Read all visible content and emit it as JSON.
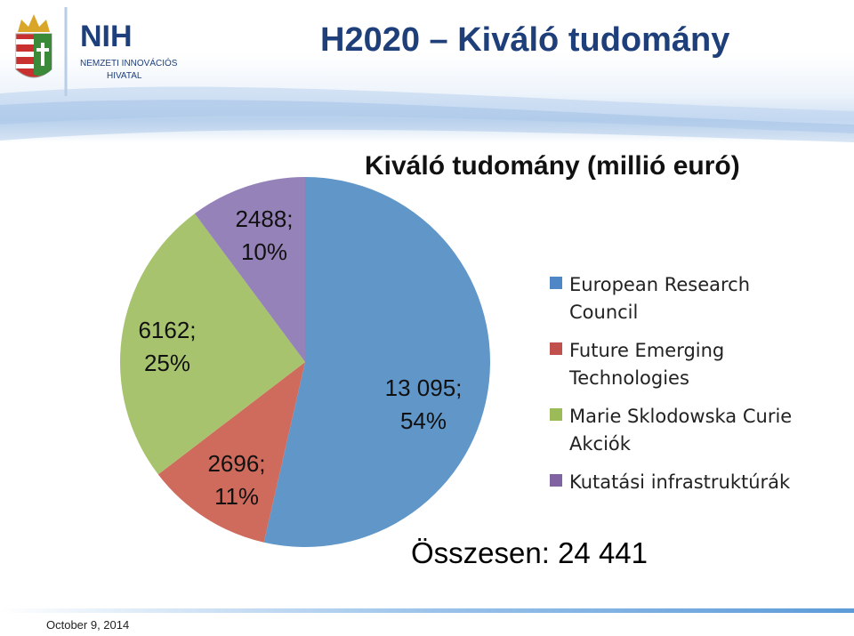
{
  "slide": {
    "title": "H2020 – Kiváló tudomány",
    "footer_date": "October 9, 2014"
  },
  "logo": {
    "mark": "NIH",
    "text_line1": "NEMZETI INNOVÁCIÓS",
    "text_line2": "HIVATAL"
  },
  "chart_data": {
    "type": "pie",
    "title": "Kiváló tudomány (millió euró)",
    "total_label": "Összesen: 24 441",
    "slices": [
      {
        "name": "European Research Council",
        "value": 13095,
        "value_label": "13 095;",
        "percent_label": "54%",
        "color": "#6096c8"
      },
      {
        "name": "Future Emerging Technologies",
        "value": 2696,
        "value_label": "2696;",
        "percent_label": "11%",
        "color": "#cf6b5d"
      },
      {
        "name": "Marie Sklodowska Curie Akciók",
        "value": 6162,
        "value_label": "6162;",
        "percent_label": "25%",
        "color": "#a8c36e"
      },
      {
        "name": "Kutatási infrastruktúrák",
        "value": 2488,
        "value_label": "2488;",
        "percent_label": "10%",
        "color": "#9582b8"
      }
    ],
    "legend_position": "right",
    "legend": [
      {
        "line1": "European Research",
        "line2": "Council",
        "color": "#4f86c6"
      },
      {
        "line1": "Future Emerging",
        "line2": "Technologies",
        "color": "#c0504d"
      },
      {
        "line1": "Marie Sklodowska Curie",
        "line2": "Akciók",
        "color": "#9bbb59"
      },
      {
        "line1": "Kutatási infrastruktúrák",
        "line2": "",
        "color": "#8064a2"
      }
    ]
  }
}
